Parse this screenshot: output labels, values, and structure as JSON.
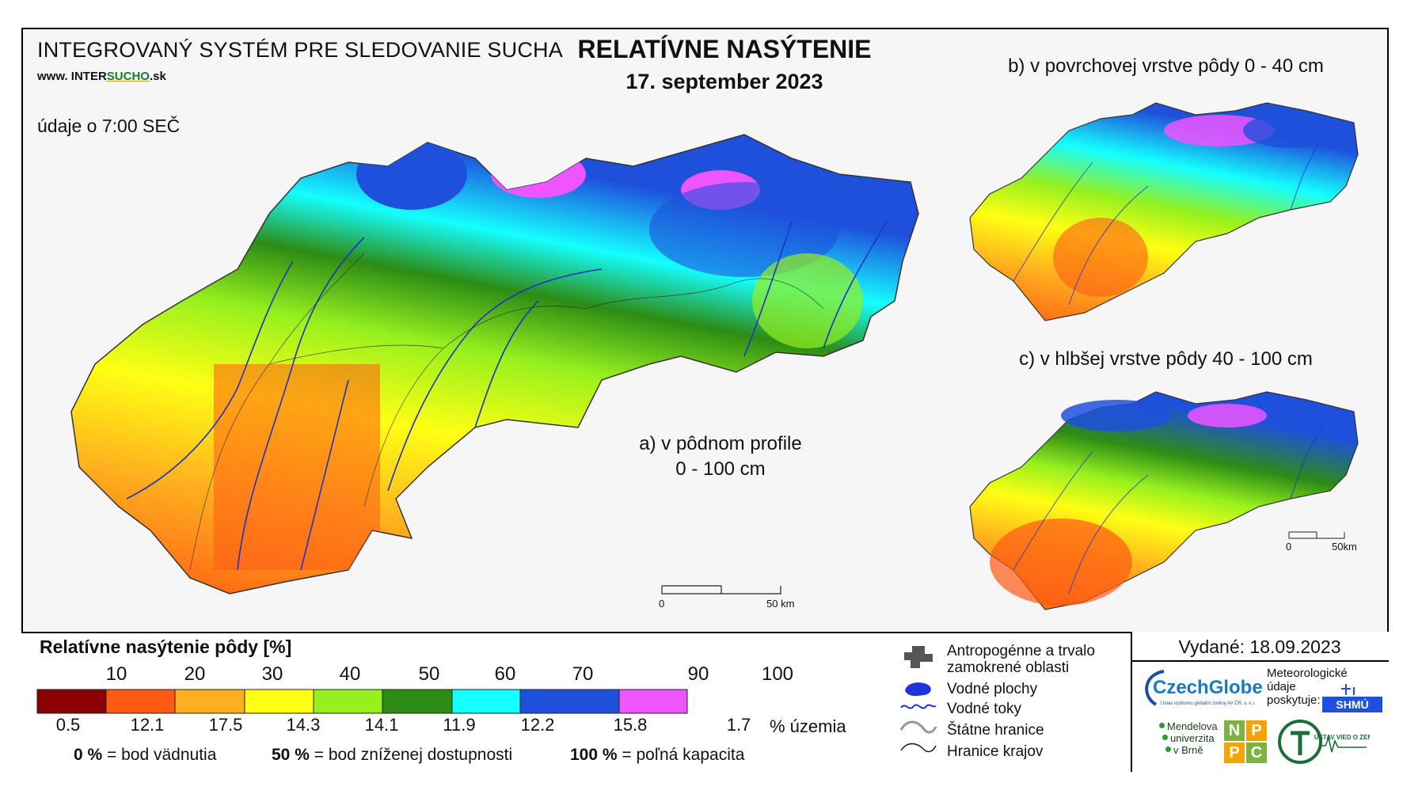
{
  "header": {
    "system_title": "INTEGROVANÝ SYSTÉM PRE SLEDOVANIE SUCHA",
    "url_prefix": "www. INTER",
    "url_accent": "SUCHO",
    "url_suffix": ".sk",
    "data_time": "údaje o 7:00 SEČ"
  },
  "title": {
    "main": "RELATÍVNE NASÝTENIE",
    "date": "17. september 2023"
  },
  "maps": {
    "a_label_line1": "a) v pôdnom profile",
    "a_label_line2": "0 - 100 cm",
    "b_label": "b) v povrchovej vrstve pôdy 0 - 40 cm",
    "c_label": "c) v hlbšej vrstve pôdy 40 - 100 cm",
    "scale_main_start": "0",
    "scale_main_end": "50 km",
    "scale_small_start": "0",
    "scale_small_end": "50km"
  },
  "legend": {
    "title": "Relatívne nasýtenie pôdy [%]",
    "ticks": [
      "10",
      "20",
      "30",
      "40",
      "50",
      "60",
      "70",
      "90",
      "100"
    ],
    "classes": [
      {
        "color": "#8b0000",
        "share": "0.5"
      },
      {
        "color": "#ff5a14",
        "share": "12.1"
      },
      {
        "color": "#ffae1e",
        "share": "17.5"
      },
      {
        "color": "#ffff14",
        "share": "14.3"
      },
      {
        "color": "#96f01e",
        "share": "14.1"
      },
      {
        "color": "#2d8c14",
        "share": "11.9"
      },
      {
        "color": "#14ffff",
        "share": "12.2"
      },
      {
        "color": "#1e50dc",
        "share": "15.8"
      },
      {
        "color": "#ee55ff",
        "share": "1.7"
      }
    ],
    "share_unit": "% územia",
    "notes": {
      "n0_value": "0 %",
      "n0_text": "= bod vädnutia",
      "n50_value": "50 %",
      "n50_text": "= bod zníženej dostupnosti",
      "n100_value": "100 %",
      "n100_text": "= poľná kapacita"
    }
  },
  "symbols": {
    "anthropogenic_line1": "Antropogénne a trvalo",
    "anthropogenic_line2": "zamokrené oblasti",
    "water_bodies": "Vodné plochy",
    "rivers": "Vodné toky",
    "state_border": "Štátne hranice",
    "region_border": "Hranice krajov"
  },
  "issued": "Vydané: 18.09.2023",
  "logos": {
    "czechglobe": "CzechGlobe",
    "czechglobe_sub": "Ústav výzkumu globální změny AV ČR, v. v. i.",
    "meteo_line1": "Meteorologické",
    "meteo_line2": "údaje",
    "meteo_line3": "poskytuje:",
    "shmu": "SHMÚ",
    "mendel_line1": "Mendelova",
    "mendel_line2": "univerzita",
    "mendel_line3": "v Brně",
    "nppc": [
      "N",
      "P",
      "P",
      "C"
    ],
    "uvz": "ÚSTAV VIED O ZEMI"
  }
}
